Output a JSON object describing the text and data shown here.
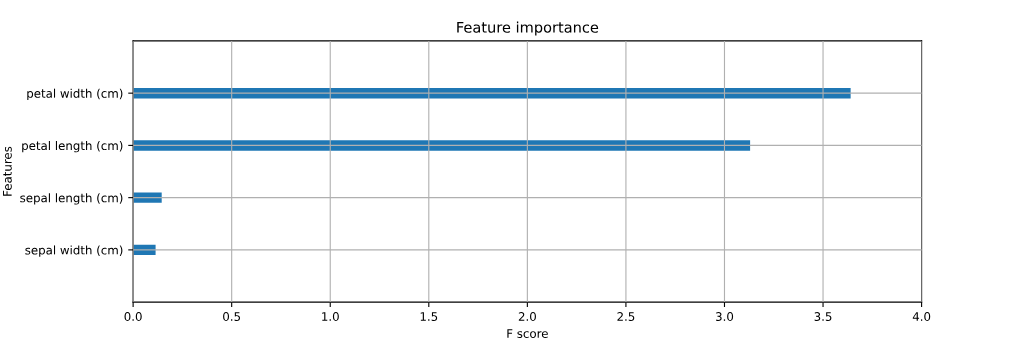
{
  "chart_data": {
    "type": "bar",
    "orientation": "horizontal",
    "title": "Feature importance",
    "xlabel": "F score",
    "ylabel": "Features",
    "categories": [
      "petal width (cm)",
      "petal length (cm)",
      "sepal length (cm)",
      "sepal width (cm)"
    ],
    "values": [
      3.64,
      3.13,
      0.145,
      0.114
    ],
    "color": "#1f77b4",
    "xlim": [
      0,
      4
    ],
    "xticks": [
      {
        "value": 0,
        "label": "0.0"
      },
      {
        "value": 0.5,
        "label": "0.5"
      },
      {
        "value": 1,
        "label": "1.0"
      },
      {
        "value": 1.5,
        "label": "1.5"
      },
      {
        "value": 2,
        "label": "2.0"
      },
      {
        "value": 2.5,
        "label": "2.5"
      },
      {
        "value": 3,
        "label": "3.0"
      },
      {
        "value": 3.5,
        "label": "3.5"
      },
      {
        "value": 4,
        "label": "4.0"
      }
    ],
    "grid": true
  }
}
